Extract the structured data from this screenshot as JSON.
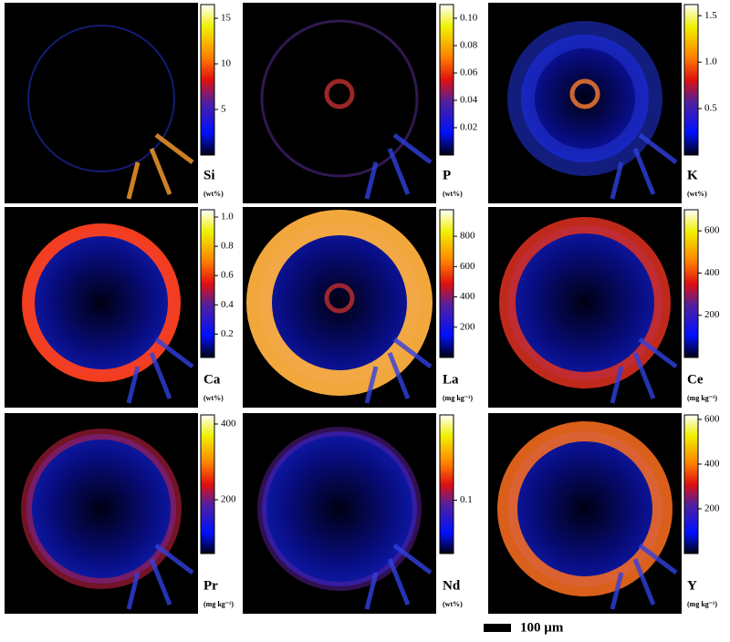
{
  "figure": {
    "panels": [
      {
        "element": "Si",
        "unit": "(wt%)",
        "range": [
          0,
          16.5
        ],
        "ticks": [
          5,
          10,
          15
        ]
      },
      {
        "element": "P",
        "unit": "(wt%)",
        "range": [
          0,
          0.11
        ],
        "ticks": [
          0.02,
          0.04,
          0.06,
          0.08,
          {
            "value": 0.1,
            "label": "0.10"
          }
        ]
      },
      {
        "element": "K",
        "unit": "(wt%)",
        "range": [
          0,
          1.62
        ],
        "ticks": [
          0.5,
          {
            "value": 1,
            "label": "1.0"
          },
          1.5
        ]
      },
      {
        "element": "Ca",
        "unit": "(wt%)",
        "range": [
          0.04,
          1.05
        ],
        "ticks": [
          0.2,
          0.4,
          0.6,
          0.8,
          {
            "value": 1,
            "label": "1.0"
          }
        ]
      },
      {
        "element": "La",
        "unit": "(mg kg⁻¹)",
        "range": [
          0,
          975
        ],
        "ticks": [
          200,
          400,
          600,
          800
        ]
      },
      {
        "element": "Ce",
        "unit": "(mg kg⁻¹)",
        "range": [
          0,
          700
        ],
        "ticks": [
          200,
          400,
          600
        ]
      },
      {
        "element": "Pr",
        "unit": "(mg kg⁻¹)",
        "range": [
          58,
          424
        ],
        "ticks": [
          200,
          400
        ]
      },
      {
        "element": "Nd",
        "unit": "(wt%)",
        "range": [
          0,
          0.26
        ],
        "ticks": [
          0.1
        ]
      },
      {
        "element": "Y",
        "unit": "(mg kg⁻¹)",
        "range": [
          0,
          620
        ],
        "ticks": [
          200,
          400,
          600
        ]
      }
    ],
    "scale_bar": "100 µm"
  }
}
